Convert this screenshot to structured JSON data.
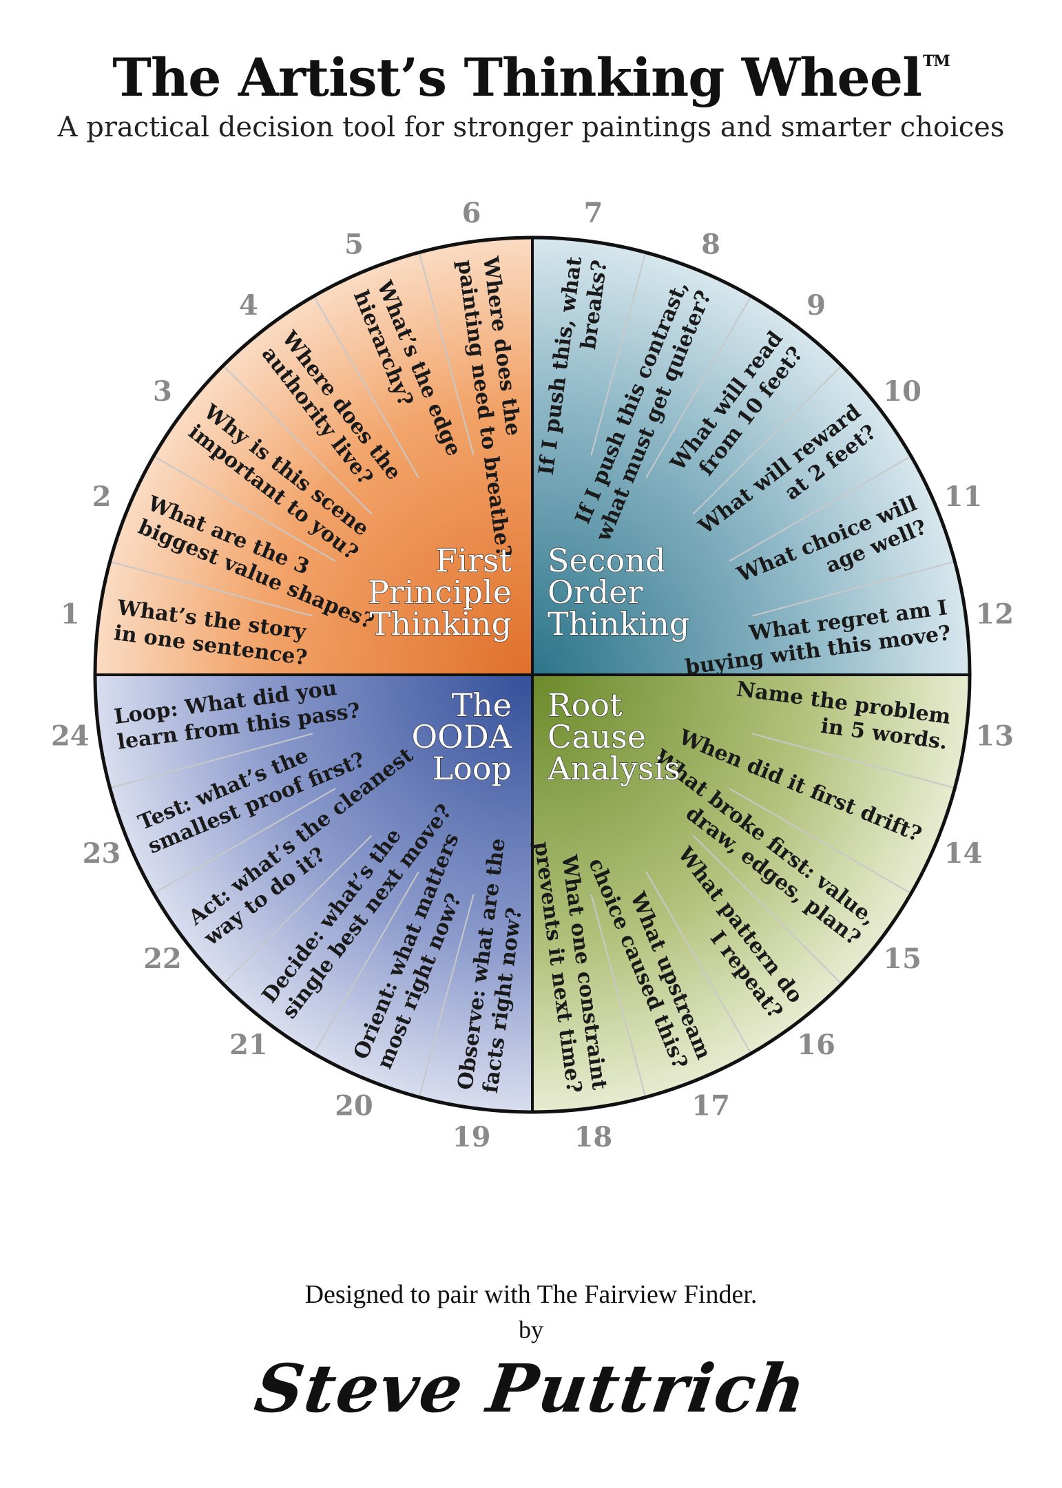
{
  "title": "The Artist’s Thinking Wheel",
  "trademark": "TM",
  "subtitle": "A practical decision tool for stronger paintings and smarter choices",
  "quadrants": [
    {
      "name": "first-principle",
      "lines": [
        "First",
        "Principle",
        "Thinking"
      ],
      "color": "#e07a2c"
    },
    {
      "name": "second-order",
      "lines": [
        "Second",
        "Order",
        "Thinking"
      ],
      "color": "#2f7f93"
    },
    {
      "name": "root-cause",
      "lines": [
        "Root",
        "Cause",
        "Analysis"
      ],
      "color": "#6f8f2f"
    },
    {
      "name": "ooda-loop",
      "lines": [
        "The",
        "OODA",
        "Loop"
      ],
      "color": "#3d5a9e"
    }
  ],
  "segments": [
    {
      "number": "1",
      "lines": [
        "What’s the story",
        "in one sentence?"
      ]
    },
    {
      "number": "2",
      "lines": [
        "What are the 3",
        "biggest value shapes?"
      ]
    },
    {
      "number": "3",
      "lines": [
        "Why is this scene",
        "important to you?"
      ]
    },
    {
      "number": "4",
      "lines": [
        "Where does the",
        "authority live?"
      ]
    },
    {
      "number": "5",
      "lines": [
        "What’s the edge",
        "hierarchy?"
      ]
    },
    {
      "number": "6",
      "lines": [
        "Where does the",
        "painting need to breathe?"
      ]
    },
    {
      "number": "7",
      "lines": [
        "If I push this, what",
        "breaks?"
      ]
    },
    {
      "number": "8",
      "lines": [
        "If I push this contrast,",
        "what must get quieter?"
      ]
    },
    {
      "number": "9",
      "lines": [
        "What will read",
        "from 10 feet?"
      ]
    },
    {
      "number": "10",
      "lines": [
        "What will reward",
        "at 2 feet?"
      ]
    },
    {
      "number": "11",
      "lines": [
        "What choice will",
        "age well?"
      ]
    },
    {
      "number": "12",
      "lines": [
        "What regret am I",
        "buying with this move?"
      ]
    },
    {
      "number": "13",
      "lines": [
        "Name the problem",
        "in 5 words."
      ]
    },
    {
      "number": "14",
      "lines": [
        "When did it first drift?"
      ]
    },
    {
      "number": "15",
      "lines": [
        "What broke first: value,",
        "draw, edges, plan?"
      ]
    },
    {
      "number": "16",
      "lines": [
        "What pattern do",
        "I repeat?"
      ]
    },
    {
      "number": "17",
      "lines": [
        "What upstream",
        "choice caused this?"
      ]
    },
    {
      "number": "18",
      "lines": [
        "What one constraint",
        "prevents it next time?"
      ]
    },
    {
      "number": "19",
      "lines": [
        "Observe: what are the",
        "facts right now?"
      ]
    },
    {
      "number": "20",
      "lines": [
        "Orient: what matters",
        "most right now?"
      ]
    },
    {
      "number": "21",
      "lines": [
        "Decide: what’s the",
        "single best next move?"
      ]
    },
    {
      "number": "22",
      "lines": [
        "Act: what’s the cleanest",
        "way to do it?"
      ]
    },
    {
      "number": "23",
      "lines": [
        "Test: what’s the",
        "smallest proof first?"
      ]
    },
    {
      "number": "24",
      "lines": [
        "Loop: What did you",
        "learn from this pass?"
      ]
    }
  ],
  "footer": {
    "line1": "Designed to pair with The Fairview Finder.",
    "line2": "by",
    "author": "Steve Puttrich"
  }
}
